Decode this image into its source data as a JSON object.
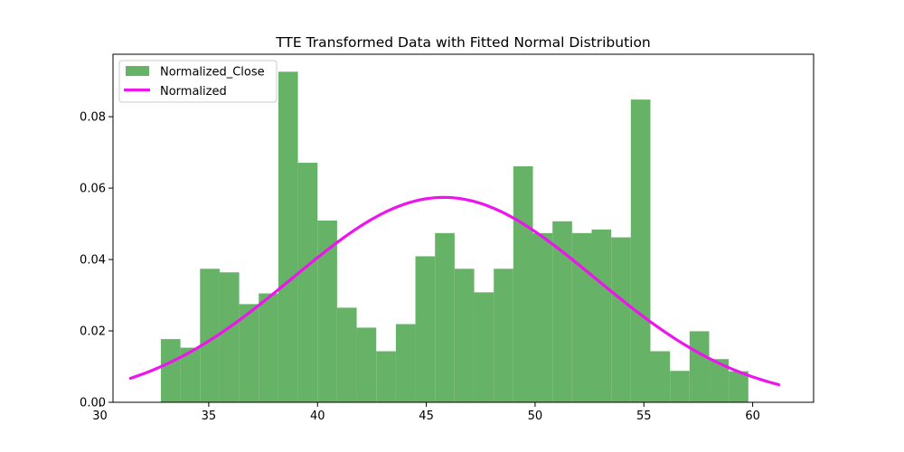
{
  "chart_data": {
    "type": "bar",
    "title": "TTE Transformed Data with Fitted Normal Distribution",
    "xlabel": "",
    "ylabel": "",
    "xlim": [
      30.6,
      62.8
    ],
    "ylim": [
      0,
      0.0975
    ],
    "xticks": [
      "30",
      "35",
      "40",
      "45",
      "50",
      "55",
      "60"
    ],
    "yticks": [
      "0.00",
      "0.02",
      "0.04",
      "0.06",
      "0.08"
    ],
    "grid": false,
    "legend_position": "top-left",
    "histogram": {
      "name": "Normalized_Close",
      "color": "#66b266",
      "bin_start": 32.8,
      "bin_width": 0.9,
      "densities": [
        0.0177,
        0.0153,
        0.0374,
        0.0364,
        0.0275,
        0.0305,
        0.0926,
        0.0671,
        0.0509,
        0.0265,
        0.0209,
        0.0143,
        0.0219,
        0.0409,
        0.0474,
        0.0374,
        0.0308,
        0.0374,
        0.0661,
        0.0474,
        0.0507,
        0.0474,
        0.0484,
        0.0462,
        0.0848,
        0.0143,
        0.0088,
        0.0199,
        0.0121,
        0.0087
      ]
    },
    "curve": {
      "name": "Normalized",
      "color": "#ee14ee",
      "mean": 45.8,
      "std": 6.95,
      "x_range": [
        31.4,
        61.2
      ]
    }
  }
}
